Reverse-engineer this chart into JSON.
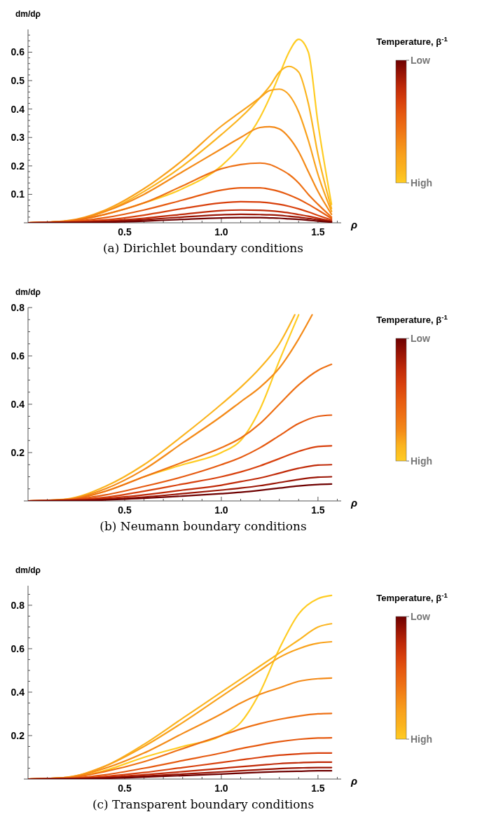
{
  "chart_data": [
    {
      "type": "line",
      "xlabel": "ρ",
      "ylabel": "dm/dρ",
      "clabel": "Temperature, β$^{-1}$",
      "annotations": [
        "(a) Dirichlet boundary conditions",
        "Low",
        "High"
      ],
      "xlim": [
        0,
        1.62
      ],
      "ylim": [
        0,
        0.68
      ],
      "xticks": [
        {
          "value": 0.1,
          "label": null
        },
        {
          "value": 0.2,
          "label": null
        },
        {
          "value": 0.3,
          "label": null
        },
        {
          "value": 0.4,
          "label": null
        },
        {
          "value": 0.5,
          "label": "0.5"
        },
        {
          "value": 0.6,
          "label": null
        },
        {
          "value": 0.7,
          "label": null
        },
        {
          "value": 0.8,
          "label": null
        },
        {
          "value": 0.9,
          "label": null
        },
        {
          "value": 1,
          "label": "1.0"
        },
        {
          "value": 1.1,
          "label": null
        },
        {
          "value": 1.2,
          "label": null
        },
        {
          "value": 1.3,
          "label": null
        },
        {
          "value": 1.4,
          "label": null
        },
        {
          "value": 1.5,
          "label": "1.5"
        },
        {
          "value": 1.6,
          "label": null
        }
      ],
      "yticks": [
        {
          "value": 0.02,
          "label": null
        },
        {
          "value": 0.04,
          "label": null
        },
        {
          "value": 0.06,
          "label": null
        },
        {
          "value": 0.08,
          "label": null
        },
        0.1,
        {
          "value": 0.12,
          "label": null
        },
        {
          "value": 0.14,
          "label": null
        },
        {
          "value": 0.16,
          "label": null
        },
        {
          "value": 0.18,
          "label": null
        },
        0.2,
        {
          "value": 0.22,
          "label": null
        },
        {
          "value": 0.24,
          "label": null
        },
        {
          "value": 0.26,
          "label": null
        },
        {
          "value": 0.28,
          "label": null
        },
        0.3,
        {
          "value": 0.32,
          "label": null
        },
        {
          "value": 0.34,
          "label": null
        },
        {
          "value": 0.36,
          "label": null
        },
        {
          "value": 0.38,
          "label": null
        },
        0.4,
        {
          "value": 0.42,
          "label": null
        },
        {
          "value": 0.44,
          "label": null
        },
        {
          "value": 0.46,
          "label": null
        },
        {
          "value": 0.48,
          "label": null
        },
        0.5,
        {
          "value": 0.52,
          "label": null
        },
        {
          "value": 0.54,
          "label": null
        },
        {
          "value": 0.56,
          "label": null
        },
        {
          "value": 0.58,
          "label": null
        },
        0.6,
        {
          "value": 0.62,
          "label": null
        },
        {
          "value": 0.64,
          "label": null
        },
        {
          "value": 0.66,
          "label": null
        }
      ],
      "x": [
        0,
        0.2,
        0.4,
        0.6,
        0.8,
        1.0,
        1.1,
        1.2,
        1.25,
        1.3,
        1.35,
        1.4,
        1.45,
        1.5,
        1.57
      ],
      "series": [
        {
          "color": "#ffcc22",
          "values": [
            0,
            0.005,
            0.03,
            0.07,
            0.12,
            0.2,
            0.27,
            0.37,
            0.44,
            0.52,
            0.6,
            0.645,
            0.6,
            0.35,
            0.065
          ]
        },
        {
          "color": "#fbb41e",
          "values": [
            0,
            0.006,
            0.04,
            0.11,
            0.2,
            0.31,
            0.37,
            0.44,
            0.48,
            0.53,
            0.55,
            0.53,
            0.42,
            0.24,
            0.05
          ]
        },
        {
          "color": "#f9a21c",
          "values": [
            0,
            0.007,
            0.045,
            0.12,
            0.22,
            0.34,
            0.39,
            0.44,
            0.465,
            0.47,
            0.45,
            0.39,
            0.29,
            0.17,
            0.04
          ]
        },
        {
          "color": "#f48a18",
          "values": [
            0,
            0.006,
            0.04,
            0.1,
            0.18,
            0.26,
            0.3,
            0.335,
            0.338,
            0.33,
            0.3,
            0.25,
            0.18,
            0.11,
            0.03
          ]
        },
        {
          "color": "#ee7014",
          "values": [
            0,
            0.005,
            0.03,
            0.07,
            0.13,
            0.19,
            0.205,
            0.21,
            0.205,
            0.19,
            0.17,
            0.14,
            0.1,
            0.065,
            0.02
          ]
        },
        {
          "color": "#e65a10",
          "values": [
            0,
            0.003,
            0.018,
            0.045,
            0.08,
            0.115,
            0.123,
            0.123,
            0.118,
            0.11,
            0.098,
            0.083,
            0.065,
            0.045,
            0.015
          ]
        },
        {
          "color": "#d8400c",
          "values": [
            0,
            0.002,
            0.01,
            0.027,
            0.05,
            0.07,
            0.074,
            0.073,
            0.07,
            0.065,
            0.058,
            0.049,
            0.038,
            0.026,
            0.01
          ]
        },
        {
          "color": "#c02a08",
          "values": [
            0,
            0.001,
            0.006,
            0.016,
            0.03,
            0.043,
            0.045,
            0.044,
            0.042,
            0.039,
            0.035,
            0.029,
            0.023,
            0.016,
            0.006
          ]
        },
        {
          "color": "#9a1404",
          "values": [
            0,
            0.001,
            0.004,
            0.011,
            0.02,
            0.028,
            0.03,
            0.029,
            0.028,
            0.026,
            0.023,
            0.02,
            0.015,
            0.011,
            0.004
          ]
        },
        {
          "color": "#6e0000",
          "values": [
            0,
            0.001,
            0.002,
            0.006,
            0.012,
            0.017,
            0.018,
            0.018,
            0.017,
            0.016,
            0.014,
            0.012,
            0.009,
            0.006,
            0.002
          ]
        }
      ]
    },
    {
      "type": "line",
      "xlabel": "ρ",
      "ylabel": "dm/dρ",
      "clabel": "Temperature, β$^{-1}$",
      "annotations": [
        "(b) Neumann boundary conditions",
        "Low",
        "High"
      ],
      "xlim": [
        0,
        1.62
      ],
      "ylim": [
        0,
        0.8
      ],
      "xticks": [
        {
          "value": 0.1,
          "label": null
        },
        {
          "value": 0.2,
          "label": null
        },
        {
          "value": 0.3,
          "label": null
        },
        {
          "value": 0.4,
          "label": null
        },
        {
          "value": 0.5,
          "label": "0.5"
        },
        {
          "value": 0.6,
          "label": null
        },
        {
          "value": 0.7,
          "label": null
        },
        {
          "value": 0.8,
          "label": null
        },
        {
          "value": 0.9,
          "label": null
        },
        {
          "value": 1,
          "label": "1.0"
        },
        {
          "value": 1.1,
          "label": null
        },
        {
          "value": 1.2,
          "label": null
        },
        {
          "value": 1.3,
          "label": null
        },
        {
          "value": 1.4,
          "label": null
        },
        {
          "value": 1.5,
          "label": "1.5"
        },
        {
          "value": 1.6,
          "label": null
        }
      ],
      "yticks": [
        {
          "value": 0.05,
          "label": null
        },
        {
          "value": 0.1,
          "label": null
        },
        {
          "value": 0.15,
          "label": null
        },
        0.2,
        {
          "value": 0.25,
          "label": null
        },
        {
          "value": 0.3,
          "label": null
        },
        {
          "value": 0.35,
          "label": null
        },
        0.4,
        {
          "value": 0.45,
          "label": null
        },
        {
          "value": 0.5,
          "label": null
        },
        {
          "value": 0.55,
          "label": null
        },
        0.6,
        {
          "value": 0.65,
          "label": null
        },
        {
          "value": 0.7,
          "label": null
        },
        {
          "value": 0.75,
          "label": null
        },
        0.8
      ],
      "x": [
        0,
        0.2,
        0.4,
        0.6,
        0.8,
        1.0,
        1.1,
        1.2,
        1.3,
        1.4,
        1.5,
        1.57
      ],
      "series": [
        {
          "color": "#ffcc22",
          "values": [
            0,
            0.005,
            0.04,
            0.1,
            0.15,
            0.2,
            0.25,
            0.38,
            0.58,
            0.77,
            null,
            null
          ]
        },
        {
          "color": "#fbb41e",
          "x": [
            0,
            0.2,
            0.4,
            0.6,
            0.8,
            1.0,
            1.1,
            1.2,
            1.3,
            1.38
          ],
          "values": [
            0,
            0.008,
            0.06,
            0.15,
            0.27,
            0.4,
            0.47,
            0.55,
            0.65,
            0.77
          ]
        },
        {
          "color": "#f48a18",
          "x": [
            0,
            0.2,
            0.4,
            0.6,
            0.8,
            1.0,
            1.1,
            1.2,
            1.3,
            1.4,
            1.47
          ],
          "values": [
            0,
            0.007,
            0.05,
            0.13,
            0.24,
            0.35,
            0.41,
            0.47,
            0.55,
            0.67,
            0.77
          ]
        },
        {
          "color": "#ee7014",
          "values": [
            0,
            0.005,
            0.04,
            0.1,
            0.16,
            0.22,
            0.26,
            0.32,
            0.4,
            0.48,
            0.54,
            0.565
          ]
        },
        {
          "color": "#e65a10",
          "values": [
            0,
            0.004,
            0.025,
            0.06,
            0.1,
            0.15,
            0.18,
            0.22,
            0.27,
            0.32,
            0.35,
            0.355
          ]
        },
        {
          "color": "#d8400c",
          "values": [
            0,
            0.003,
            0.015,
            0.04,
            0.07,
            0.1,
            0.12,
            0.145,
            0.175,
            0.205,
            0.225,
            0.228
          ]
        },
        {
          "color": "#c02a08",
          "values": [
            0,
            0.002,
            0.01,
            0.025,
            0.045,
            0.065,
            0.08,
            0.095,
            0.115,
            0.135,
            0.148,
            0.15
          ]
        },
        {
          "color": "#9a1404",
          "values": [
            0,
            0.001,
            0.006,
            0.016,
            0.03,
            0.045,
            0.053,
            0.063,
            0.076,
            0.089,
            0.098,
            0.1
          ]
        },
        {
          "color": "#6e0000",
          "values": [
            0,
            0.001,
            0.004,
            0.011,
            0.02,
            0.03,
            0.036,
            0.044,
            0.053,
            0.062,
            0.068,
            0.07
          ]
        }
      ]
    },
    {
      "type": "line",
      "xlabel": "ρ",
      "ylabel": "dm/dρ",
      "clabel": "Temperature, β$^{-1}$",
      "annotations": [
        "(c) Transparent boundary conditions",
        "Low",
        "High"
      ],
      "xlim": [
        0,
        1.62
      ],
      "ylim": [
        0,
        0.89
      ],
      "xticks": [
        {
          "value": 0.1,
          "label": null
        },
        {
          "value": 0.2,
          "label": null
        },
        {
          "value": 0.3,
          "label": null
        },
        {
          "value": 0.4,
          "label": null
        },
        {
          "value": 0.5,
          "label": "0.5"
        },
        {
          "value": 0.6,
          "label": null
        },
        {
          "value": 0.7,
          "label": null
        },
        {
          "value": 0.8,
          "label": null
        },
        {
          "value": 0.9,
          "label": null
        },
        {
          "value": 1,
          "label": "1.0"
        },
        {
          "value": 1.1,
          "label": null
        },
        {
          "value": 1.2,
          "label": null
        },
        {
          "value": 1.3,
          "label": null
        },
        {
          "value": 1.4,
          "label": null
        },
        {
          "value": 1.5,
          "label": "1.5"
        },
        {
          "value": 1.6,
          "label": null
        }
      ],
      "yticks": [
        {
          "value": 0.05,
          "label": null
        },
        {
          "value": 0.1,
          "label": null
        },
        {
          "value": 0.15,
          "label": null
        },
        0.2,
        {
          "value": 0.25,
          "label": null
        },
        {
          "value": 0.3,
          "label": null
        },
        {
          "value": 0.35,
          "label": null
        },
        0.4,
        {
          "value": 0.45,
          "label": null
        },
        {
          "value": 0.5,
          "label": null
        },
        {
          "value": 0.55,
          "label": null
        },
        0.6,
        {
          "value": 0.65,
          "label": null
        },
        {
          "value": 0.7,
          "label": null
        },
        {
          "value": 0.75,
          "label": null
        },
        0.8,
        {
          "value": 0.85,
          "label": null
        }
      ],
      "x": [
        0,
        0.2,
        0.4,
        0.6,
        0.8,
        1.0,
        1.1,
        1.2,
        1.3,
        1.4,
        1.5,
        1.57
      ],
      "series": [
        {
          "color": "#ffcc22",
          "values": [
            0,
            0.005,
            0.04,
            0.1,
            0.15,
            0.2,
            0.26,
            0.4,
            0.6,
            0.76,
            0.83,
            0.845
          ]
        },
        {
          "color": "#fbb41e",
          "values": [
            0,
            0.008,
            0.06,
            0.16,
            0.28,
            0.4,
            0.46,
            0.52,
            0.58,
            0.64,
            0.7,
            0.715
          ]
        },
        {
          "color": "#f9a21c",
          "values": [
            0,
            0.008,
            0.06,
            0.15,
            0.26,
            0.38,
            0.44,
            0.5,
            0.56,
            0.6,
            0.625,
            0.632
          ]
        },
        {
          "color": "#f48a18",
          "values": [
            0,
            0.007,
            0.05,
            0.12,
            0.21,
            0.3,
            0.35,
            0.39,
            0.42,
            0.45,
            0.462,
            0.465
          ]
        },
        {
          "color": "#ee7014",
          "values": [
            0,
            0.005,
            0.035,
            0.08,
            0.14,
            0.2,
            0.23,
            0.255,
            0.275,
            0.29,
            0.3,
            0.302
          ]
        },
        {
          "color": "#e65a10",
          "values": [
            0,
            0.003,
            0.02,
            0.05,
            0.085,
            0.12,
            0.14,
            0.157,
            0.172,
            0.183,
            0.189,
            0.19
          ]
        },
        {
          "color": "#d8400c",
          "values": [
            0,
            0.002,
            0.012,
            0.03,
            0.053,
            0.076,
            0.088,
            0.1,
            0.11,
            0.116,
            0.12,
            0.12
          ]
        },
        {
          "color": "#c02a08",
          "values": [
            0,
            0.001,
            0.008,
            0.02,
            0.034,
            0.049,
            0.057,
            0.064,
            0.071,
            0.075,
            0.078,
            0.078
          ]
        },
        {
          "color": "#9a1404",
          "values": [
            0,
            0.001,
            0.005,
            0.013,
            0.023,
            0.033,
            0.038,
            0.043,
            0.048,
            0.051,
            0.053,
            0.053
          ]
        },
        {
          "color": "#6e0000",
          "values": [
            0,
            0.001,
            0.003,
            0.009,
            0.016,
            0.023,
            0.027,
            0.031,
            0.034,
            0.036,
            0.038,
            0.038
          ]
        }
      ]
    }
  ]
}
